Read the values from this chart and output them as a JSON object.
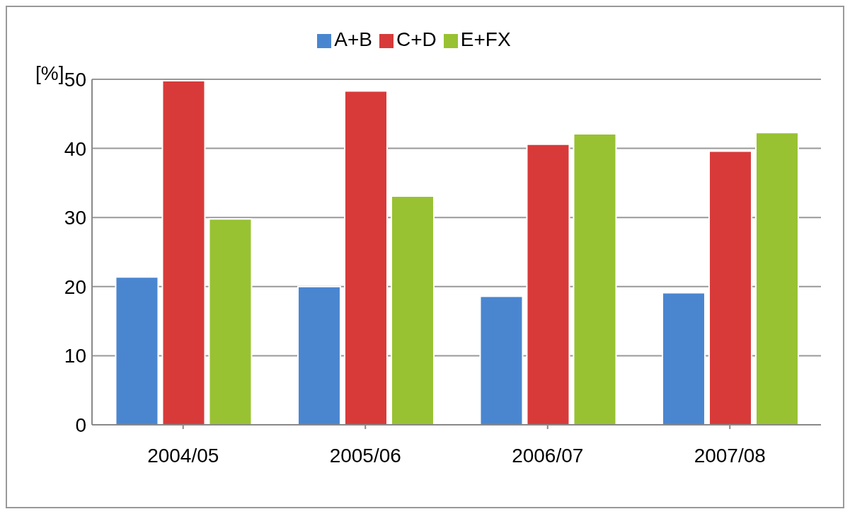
{
  "chart_data": {
    "type": "bar",
    "ylabel": "[%]",
    "categories": [
      "2004/05",
      "2005/06",
      "2006/07",
      "2007/08"
    ],
    "series": [
      {
        "name": "A+B",
        "color": "#4a86d0",
        "values": [
          21.4,
          20.0,
          18.6,
          19.1
        ]
      },
      {
        "name": "C+D",
        "color": "#d83a3a",
        "values": [
          49.8,
          48.3,
          40.6,
          39.6
        ]
      },
      {
        "name": "E+FX",
        "color": "#98c232",
        "values": [
          29.8,
          33.1,
          42.1,
          42.3
        ]
      }
    ],
    "ylim": [
      0,
      50
    ],
    "yticks": [
      0,
      10,
      20,
      30,
      40,
      50
    ],
    "grid": "y",
    "legend": "top"
  }
}
